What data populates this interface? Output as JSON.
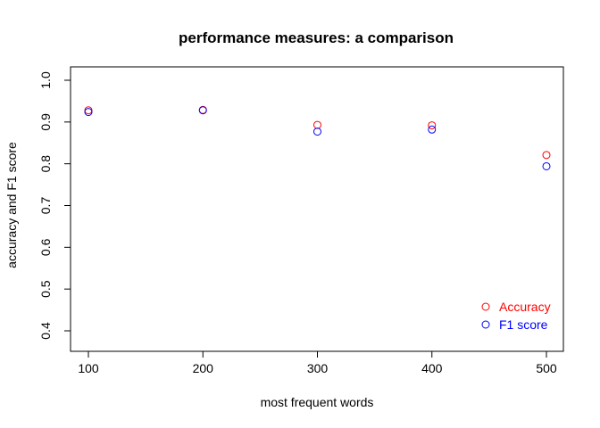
{
  "chart_data": {
    "type": "scatter",
    "title": "performance measures: a comparison",
    "xlabel": "most frequent words",
    "ylabel": "accuracy and F1 score",
    "x": [
      100,
      200,
      300,
      400,
      500
    ],
    "x_ticks": [
      "100",
      "200",
      "300",
      "400",
      "500"
    ],
    "y_ticks": [
      "0.4",
      "0.5",
      "0.6",
      "0.7",
      "0.8",
      "0.9",
      "1.0"
    ],
    "ylim": [
      0.4,
      1.0
    ],
    "xlim": [
      100,
      500
    ],
    "grid": false,
    "legend_position": "bottom-right",
    "series": [
      {
        "name": "Accuracy",
        "color": "#ff0000",
        "marker": "open-circle",
        "values": [
          0.928,
          0.929,
          0.893,
          0.892,
          0.821
        ]
      },
      {
        "name": "F1 score",
        "color": "#0000ff",
        "marker": "open-circle",
        "values": [
          0.924,
          0.928,
          0.877,
          0.882,
          0.794
        ]
      }
    ]
  }
}
